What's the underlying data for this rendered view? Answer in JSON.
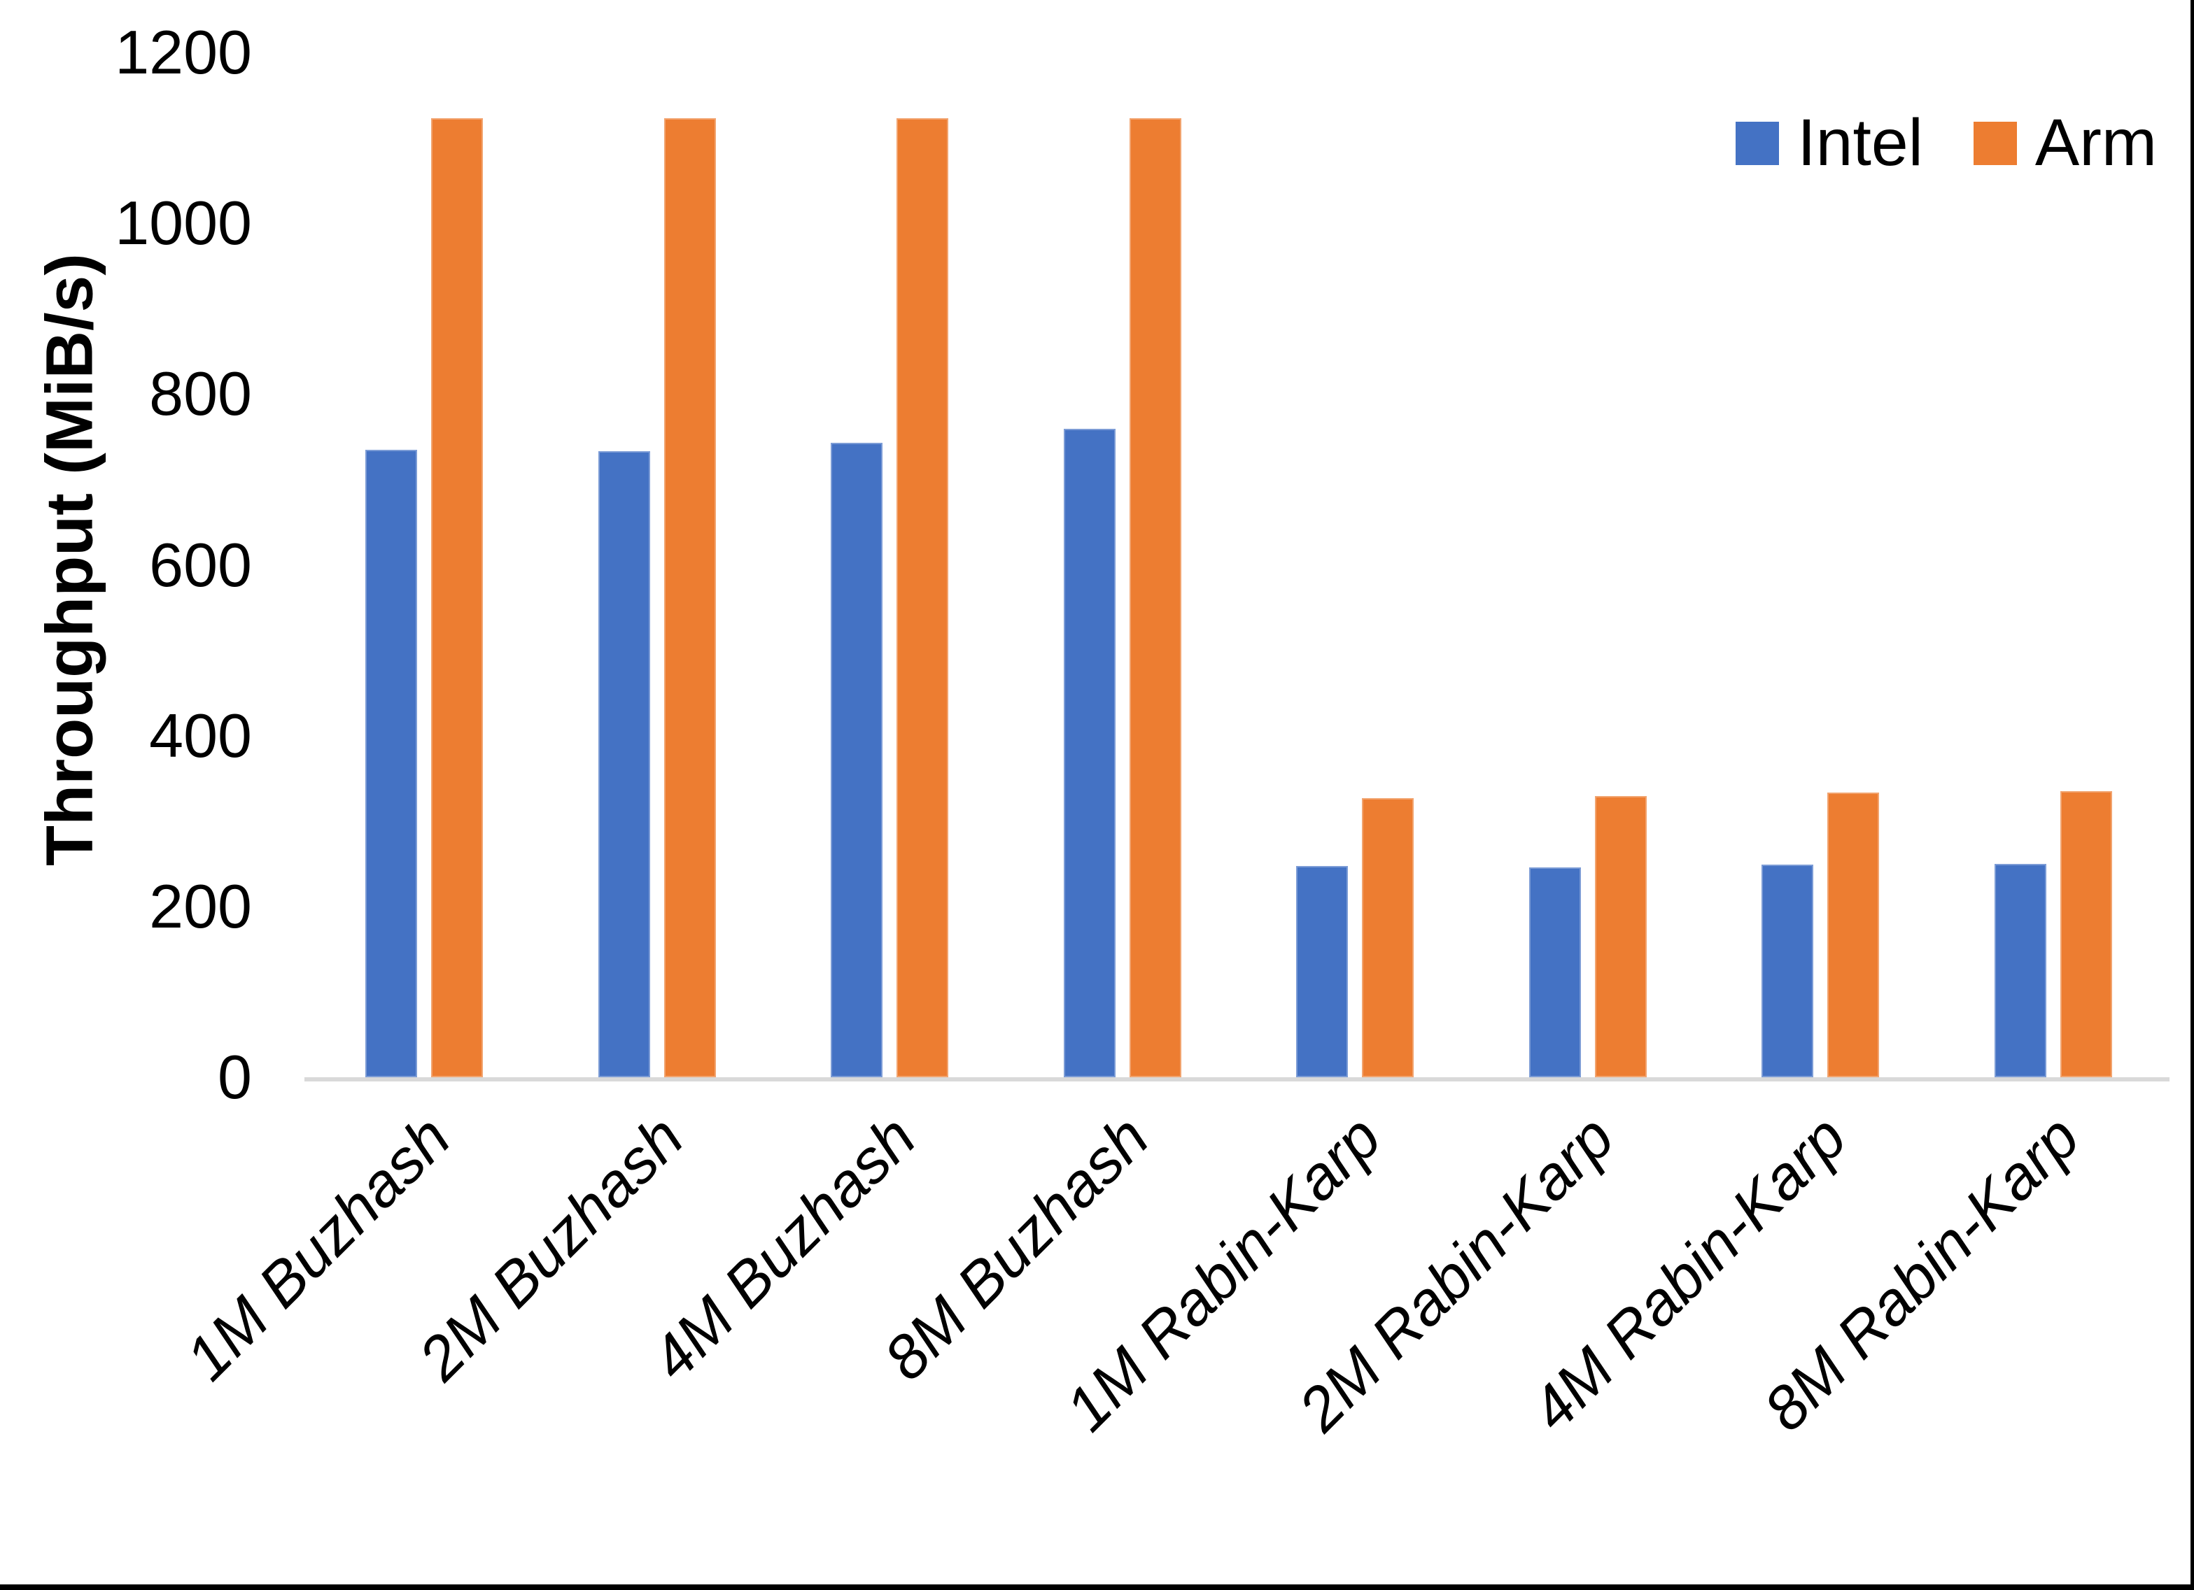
{
  "chart_data": {
    "type": "bar",
    "title": "",
    "xlabel": "",
    "ylabel": "Throughput (MiB/s)",
    "ylim": [
      0,
      1200
    ],
    "yticks": [
      0,
      200,
      400,
      600,
      800,
      1000,
      1200
    ],
    "grid": false,
    "legend_position": "top-right",
    "categories": [
      "1M Buzhash",
      "2M Buzhash",
      "4M Buzhash",
      "8M Buzhash",
      "1M Rabin-Karp",
      "2M Rabin-Karp",
      "4M Rabin-Karp",
      "8M Rabin-Karp"
    ],
    "series": [
      {
        "name": "Intel",
        "color": "#4472C4",
        "values": [
          735,
          733,
          743,
          759,
          247,
          246,
          249,
          250
        ]
      },
      {
        "name": "Arm",
        "color": "#ED7D31",
        "values": [
          1123,
          1123,
          1123,
          1123,
          327,
          329,
          333,
          335
        ]
      }
    ],
    "colors": {
      "axis_line": "#D9D9D9",
      "frame_edge": "#000000",
      "text": "#000000"
    }
  }
}
